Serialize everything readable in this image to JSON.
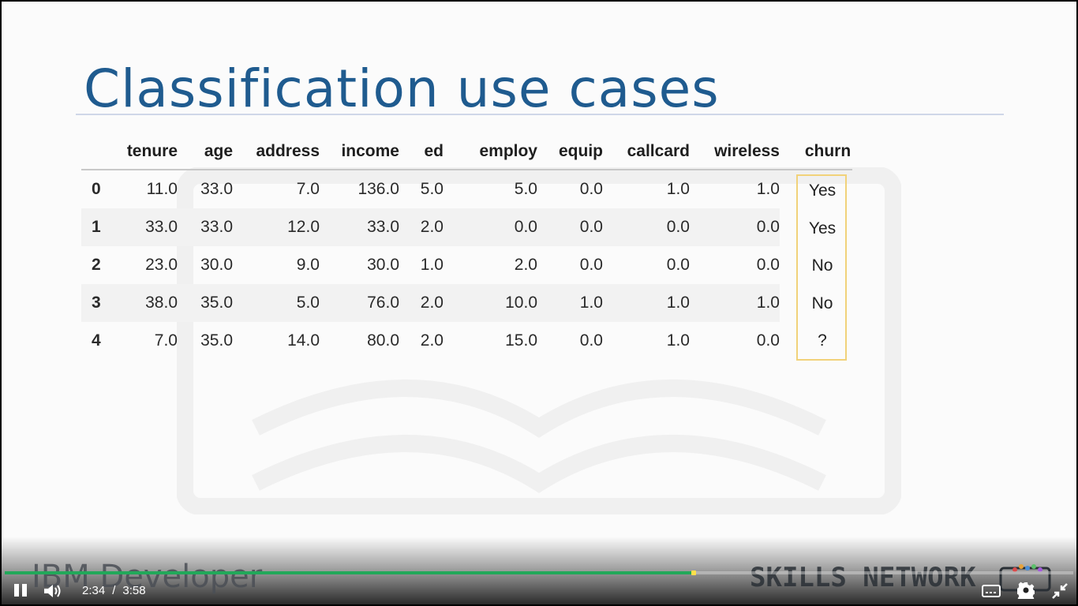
{
  "slide": {
    "title": "Classification use cases",
    "table": {
      "columns": [
        "tenure",
        "age",
        "address",
        "income",
        "ed",
        "employ",
        "equip",
        "callcard",
        "wireless",
        "churn"
      ],
      "rows": [
        {
          "index": "0",
          "values": [
            "11.0",
            "33.0",
            "7.0",
            "136.0",
            "5.0",
            "5.0",
            "0.0",
            "1.0",
            "1.0"
          ],
          "churn": "Yes"
        },
        {
          "index": "1",
          "values": [
            "33.0",
            "33.0",
            "12.0",
            "33.0",
            "2.0",
            "0.0",
            "0.0",
            "0.0",
            "0.0"
          ],
          "churn": "Yes"
        },
        {
          "index": "2",
          "values": [
            "23.0",
            "30.0",
            "9.0",
            "30.0",
            "1.0",
            "2.0",
            "0.0",
            "0.0",
            "0.0"
          ],
          "churn": "No"
        },
        {
          "index": "3",
          "values": [
            "38.0",
            "35.0",
            "5.0",
            "76.0",
            "2.0",
            "10.0",
            "1.0",
            "1.0",
            "1.0"
          ],
          "churn": "No"
        },
        {
          "index": "4",
          "values": [
            "7.0",
            "35.0",
            "14.0",
            "80.0",
            "2.0",
            "15.0",
            "0.0",
            "1.0",
            "0.0"
          ],
          "churn": "?"
        }
      ]
    }
  },
  "branding": {
    "left": "IBM Developer",
    "right": "SKILLS NETWORK"
  },
  "player": {
    "current_time": "2:34",
    "separator": "/",
    "duration": "3:58",
    "progress_fraction": 0.645,
    "icons": {
      "pause": "pause-icon",
      "volume": "volume-icon",
      "captions": "captions-icon",
      "settings": "gear-icon",
      "exit_fullscreen": "exit-fullscreen-icon"
    }
  },
  "colors": {
    "title": "#1f5b8f",
    "highlight_border": "#f1d27a",
    "progress": "#22a85a",
    "progress_head": "#ffe04a"
  }
}
